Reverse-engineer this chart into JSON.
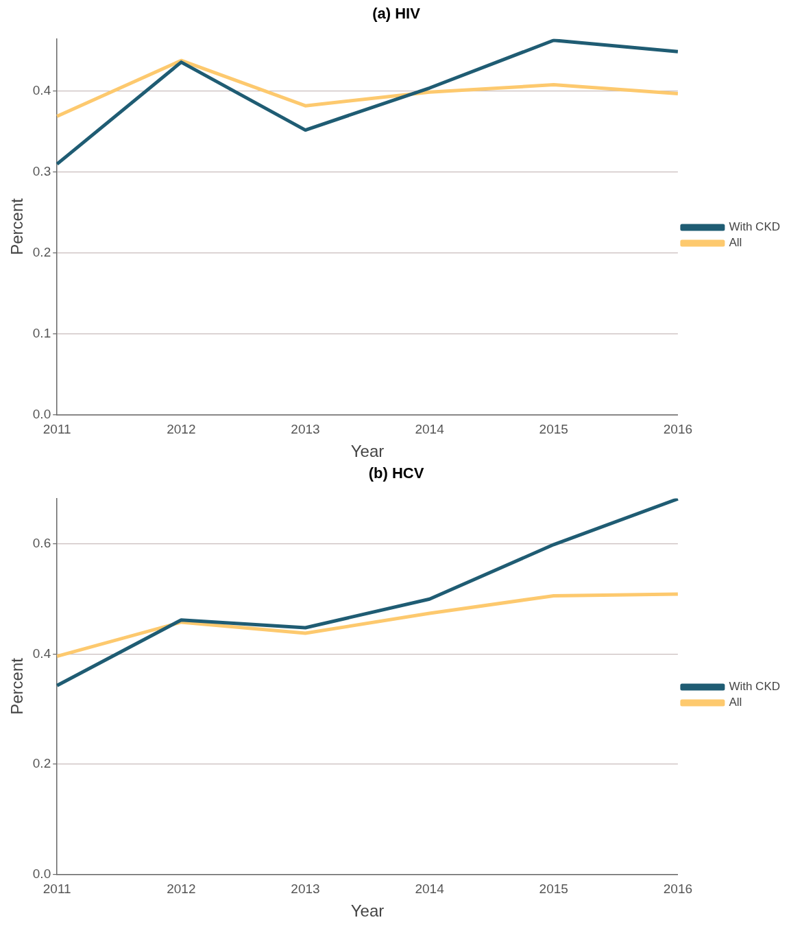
{
  "chart_data": [
    {
      "type": "line",
      "title": "(a) HIV",
      "xlabel": "Year",
      "ylabel": "Percent",
      "categories": [
        "2011",
        "2012",
        "2013",
        "2014",
        "2015",
        "2016"
      ],
      "series": [
        {
          "name": "With CKD",
          "color": "#1f5c73",
          "values": [
            0.31,
            0.436,
            0.352,
            0.404,
            0.463,
            0.449
          ]
        },
        {
          "name": "All",
          "color": "#fdc96e",
          "values": [
            0.369,
            0.438,
            0.382,
            0.399,
            0.408,
            0.397
          ]
        }
      ],
      "ylim": [
        0,
        0.465
      ],
      "yticks": [
        {
          "value": 0,
          "label": "0.0"
        },
        0.1,
        0.2,
        0.3,
        0.4
      ],
      "grid": "y",
      "legend": "right"
    },
    {
      "type": "line",
      "title": "(b) HCV",
      "xlabel": "Year",
      "ylabel": "Percent",
      "categories": [
        "2011",
        "2012",
        "2013",
        "2014",
        "2015",
        "2016"
      ],
      "series": [
        {
          "name": "With CKD",
          "color": "#1f5c73",
          "values": [
            0.343,
            0.462,
            0.448,
            0.5,
            0.599,
            0.682
          ]
        },
        {
          "name": "All",
          "color": "#fdc96e",
          "values": [
            0.396,
            0.458,
            0.438,
            0.474,
            0.506,
            0.509
          ]
        }
      ],
      "ylim": [
        0,
        0.683
      ],
      "yticks": [
        {
          "value": 0,
          "label": "0.0"
        },
        0.2,
        0.4,
        0.6
      ],
      "grid": "y",
      "legend": "right"
    }
  ]
}
